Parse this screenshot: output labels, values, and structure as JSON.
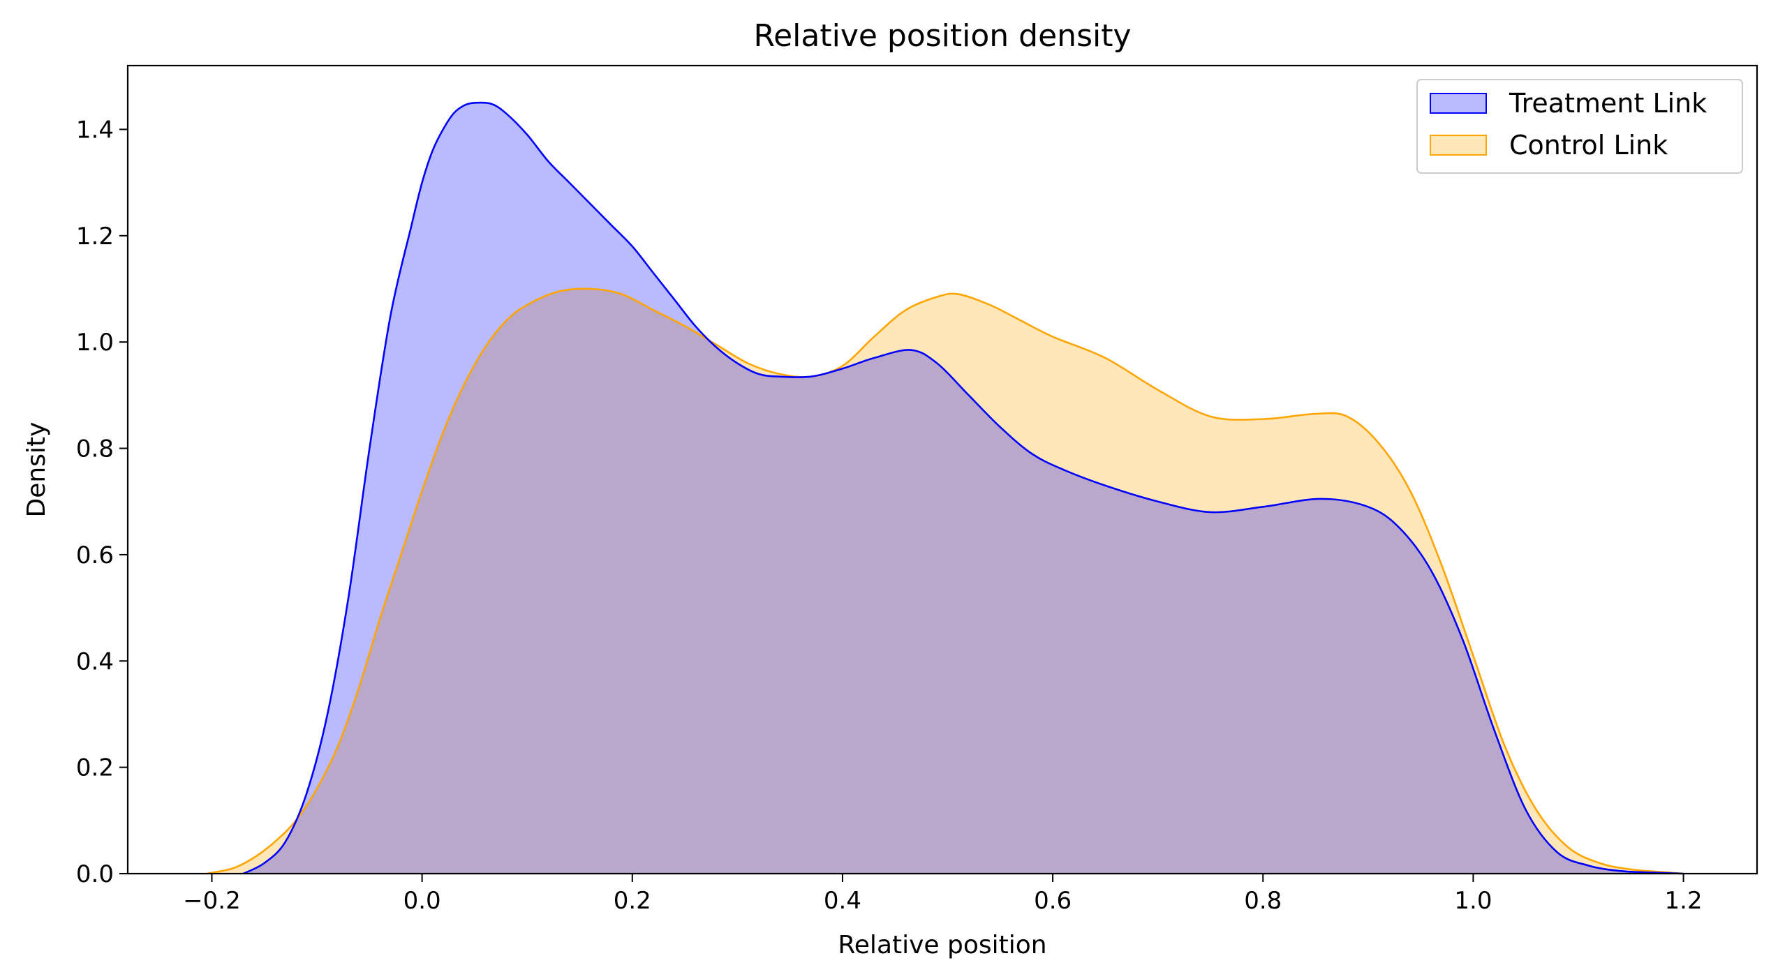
{
  "chart_data": {
    "type": "area",
    "title": "Relative position density",
    "xlabel": "Relative position",
    "ylabel": "Density",
    "xlim": [
      -0.28,
      1.27
    ],
    "ylim": [
      0,
      1.52
    ],
    "xticks": [
      -0.2,
      0.0,
      0.2,
      0.4,
      0.6,
      0.8,
      1.0,
      1.2
    ],
    "xtick_labels": [
      "−0.2",
      "0.0",
      "0.2",
      "0.4",
      "0.6",
      "0.8",
      "1.0",
      "1.2"
    ],
    "yticks": [
      0.0,
      0.2,
      0.4,
      0.6,
      0.8,
      1.0,
      1.2,
      1.4
    ],
    "ytick_labels": [
      "0.0",
      "0.2",
      "0.4",
      "0.6",
      "0.8",
      "1.0",
      "1.2",
      "1.4"
    ],
    "grid": false,
    "legend_position": "top-right",
    "series": [
      {
        "name": "Treatment Link",
        "line_color": "#0000ff",
        "fill_color": "#0000ff",
        "fill_opacity": 0.27,
        "x": [
          -0.17,
          -0.15,
          -0.13,
          -0.11,
          -0.09,
          -0.07,
          -0.05,
          -0.03,
          -0.01,
          0.0,
          0.01,
          0.02,
          0.03,
          0.04,
          0.05,
          0.066,
          0.08,
          0.1,
          0.12,
          0.14,
          0.16,
          0.18,
          0.2,
          0.22,
          0.24,
          0.26,
          0.28,
          0.3,
          0.32,
          0.34,
          0.37,
          0.4,
          0.43,
          0.465,
          0.49,
          0.52,
          0.55,
          0.58,
          0.61,
          0.65,
          0.7,
          0.75,
          0.8,
          0.855,
          0.9,
          0.93,
          0.96,
          0.99,
          1.02,
          1.05,
          1.08,
          1.11,
          1.14,
          1.17,
          1.2
        ],
        "y": [
          0.0,
          0.02,
          0.06,
          0.15,
          0.3,
          0.52,
          0.8,
          1.05,
          1.22,
          1.3,
          1.36,
          1.4,
          1.43,
          1.445,
          1.45,
          1.448,
          1.43,
          1.39,
          1.34,
          1.3,
          1.26,
          1.22,
          1.18,
          1.13,
          1.08,
          1.03,
          0.99,
          0.96,
          0.94,
          0.935,
          0.935,
          0.95,
          0.97,
          0.985,
          0.96,
          0.9,
          0.84,
          0.79,
          0.76,
          0.73,
          0.7,
          0.68,
          0.69,
          0.705,
          0.69,
          0.65,
          0.57,
          0.44,
          0.27,
          0.12,
          0.04,
          0.015,
          0.005,
          0.002,
          0.0
        ]
      },
      {
        "name": "Control Link",
        "line_color": "#ffa500",
        "fill_color": "#ffa500",
        "fill_opacity": 0.27,
        "x": [
          -0.205,
          -0.18,
          -0.16,
          -0.14,
          -0.12,
          -0.1,
          -0.08,
          -0.06,
          -0.04,
          -0.02,
          0.0,
          0.02,
          0.04,
          0.06,
          0.08,
          0.1,
          0.13,
          0.16,
          0.19,
          0.22,
          0.25,
          0.28,
          0.31,
          0.34,
          0.37,
          0.4,
          0.43,
          0.46,
          0.49,
          0.51,
          0.54,
          0.57,
          0.6,
          0.65,
          0.7,
          0.75,
          0.8,
          0.85,
          0.88,
          0.91,
          0.94,
          0.97,
          1.0,
          1.03,
          1.06,
          1.09,
          1.12,
          1.15,
          1.18,
          1.2
        ],
        "y": [
          0.0,
          0.01,
          0.03,
          0.06,
          0.1,
          0.16,
          0.24,
          0.35,
          0.48,
          0.6,
          0.72,
          0.83,
          0.92,
          0.99,
          1.04,
          1.07,
          1.095,
          1.1,
          1.09,
          1.06,
          1.03,
          0.995,
          0.96,
          0.94,
          0.935,
          0.955,
          1.01,
          1.06,
          1.085,
          1.09,
          1.07,
          1.04,
          1.01,
          0.97,
          0.91,
          0.86,
          0.855,
          0.865,
          0.86,
          0.81,
          0.72,
          0.58,
          0.41,
          0.24,
          0.12,
          0.05,
          0.02,
          0.008,
          0.003,
          0.0
        ]
      }
    ]
  }
}
